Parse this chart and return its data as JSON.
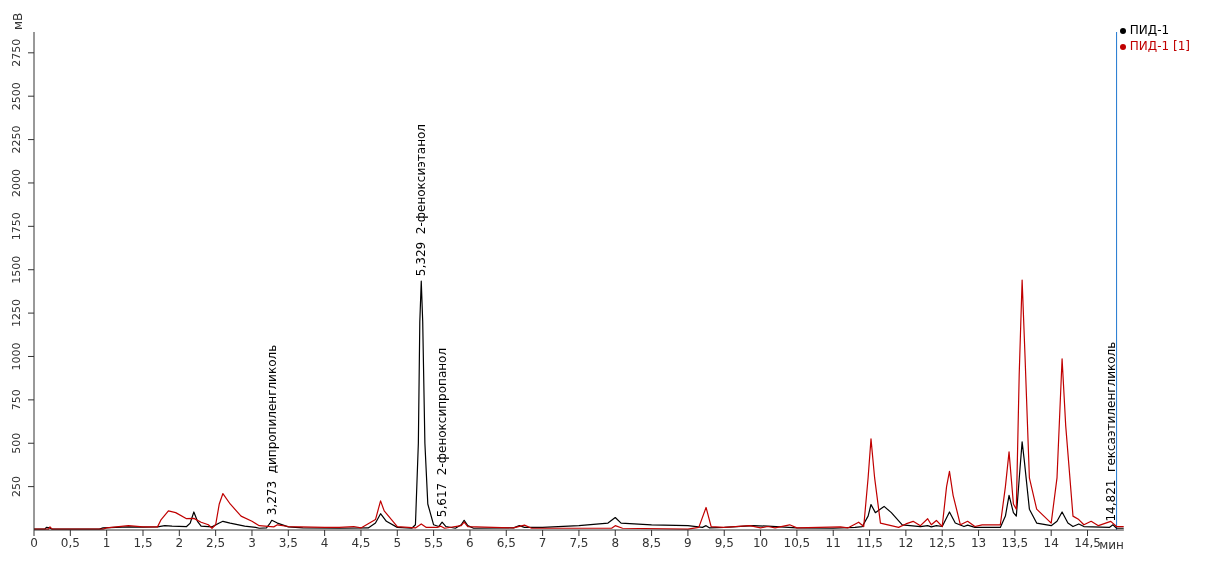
{
  "chart_data": {
    "type": "line",
    "xlabel": "мин",
    "ylabel": "мВ",
    "xlim": [
      0,
      15
    ],
    "ylim": [
      0,
      2870
    ],
    "xticks": [
      0,
      {
        "value": 0.5,
        "label": "0,5"
      },
      1,
      {
        "value": 1.5,
        "label": "1,5"
      },
      2,
      {
        "value": 2.5,
        "label": "2,5"
      },
      3,
      {
        "value": 3.5,
        "label": "3,5"
      },
      4,
      {
        "value": 4.5,
        "label": "4,5"
      },
      5,
      {
        "value": 5.5,
        "label": "5,5"
      },
      6,
      {
        "value": 6.5,
        "label": "6,5"
      },
      7,
      {
        "value": 7.5,
        "label": "7,5"
      },
      8,
      {
        "value": 8.5,
        "label": "8,5"
      },
      9,
      {
        "value": 9.5,
        "label": "9,5"
      },
      10,
      {
        "value": 10.5,
        "label": "10,5"
      },
      11,
      {
        "value": 11.5,
        "label": "11,5"
      },
      12,
      {
        "value": 12.5,
        "label": "12,5"
      },
      13,
      {
        "value": 13.5,
        "label": "13,5"
      },
      14,
      {
        "value": 14.5,
        "label": "14,5"
      }
    ],
    "yticks": [
      250,
      500,
      750,
      1000,
      1250,
      1500,
      1750,
      2000,
      2250,
      2500,
      2750
    ],
    "legend": "top right",
    "grid": false,
    "marker": "none",
    "series": [
      {
        "name": "ПИД-1",
        "color": "#000000",
        "x": [
          0,
          0.15,
          0.17,
          0.22,
          0.25,
          0.9,
          0.95,
          1.3,
          1.5,
          1.7,
          1.8,
          1.9,
          2.1,
          2.15,
          2.2,
          2.25,
          2.3,
          2.45,
          2.55,
          2.6,
          2.7,
          2.9,
          3.05,
          3.1,
          3.2,
          3.25,
          3.273,
          3.35,
          3.5,
          3.7,
          4.2,
          4.6,
          4.7,
          4.77,
          4.85,
          5.0,
          5.2,
          5.25,
          5.29,
          5.31,
          5.33,
          5.35,
          5.38,
          5.42,
          5.5,
          5.57,
          5.617,
          5.67,
          5.8,
          5.88,
          5.92,
          5.97,
          6.05,
          6.6,
          6.68,
          6.75,
          7.0,
          7.5,
          7.9,
          8.0,
          8.08,
          8.5,
          9.0,
          9.2,
          9.25,
          9.3,
          9.5,
          9.9,
          10.1,
          10.5,
          11.0,
          11.3,
          11.4,
          11.48,
          11.52,
          11.58,
          11.7,
          11.8,
          11.95,
          12.2,
          12.3,
          12.35,
          12.42,
          12.5,
          12.6,
          12.68,
          12.8,
          12.85,
          12.95,
          13.3,
          13.37,
          13.42,
          13.48,
          13.52,
          13.57,
          13.6,
          13.63,
          13.7,
          13.8,
          14.0,
          14.08,
          14.15,
          14.23,
          14.3,
          14.38,
          14.45,
          14.8,
          14.85,
          14.9,
          15
        ],
        "values": [
          5,
          5,
          15,
          12,
          5,
          5,
          12,
          18,
          16,
          18,
          25,
          22,
          20,
          40,
          104,
          50,
          22,
          18,
          40,
          50,
          40,
          22,
          15,
          10,
          12,
          40,
          56,
          40,
          18,
          12,
          10,
          12,
          40,
          94,
          50,
          15,
          10,
          30,
          500,
          1200,
          1434,
          1200,
          500,
          150,
          30,
          20,
          45,
          20,
          10,
          30,
          56,
          25,
          10,
          12,
          25,
          15,
          15,
          25,
          40,
          72,
          40,
          30,
          25,
          15,
          25,
          12,
          15,
          25,
          22,
          12,
          10,
          15,
          20,
          80,
          147,
          100,
          136,
          100,
          30,
          20,
          25,
          18,
          25,
          20,
          104,
          40,
          20,
          28,
          15,
          15,
          80,
          200,
          100,
          80,
          350,
          508,
          400,
          120,
          40,
          25,
          50,
          104,
          40,
          20,
          35,
          20,
          15,
          30,
          10,
          10
        ]
      },
      {
        "name": "ПИД-1 [1]",
        "color": "#c00000",
        "x": [
          0,
          0.2,
          0.22,
          0.25,
          0.95,
          1.0,
          1.3,
          1.5,
          1.7,
          1.75,
          1.85,
          1.95,
          2.1,
          2.2,
          2.3,
          2.4,
          2.45,
          2.5,
          2.55,
          2.6,
          2.7,
          2.85,
          3.0,
          3.1,
          3.3,
          3.35,
          3.5,
          4.0,
          4.2,
          4.4,
          4.5,
          4.7,
          4.77,
          4.82,
          5.0,
          5.25,
          5.33,
          5.4,
          5.55,
          5.6,
          5.65,
          5.88,
          5.92,
          5.97,
          6.6,
          6.75,
          6.85,
          7.5,
          7.95,
          8.0,
          8.1,
          9.0,
          9.15,
          9.25,
          9.32,
          9.5,
          9.85,
          10.0,
          10.1,
          10.2,
          10.4,
          10.5,
          11.1,
          11.2,
          11.35,
          11.42,
          11.48,
          11.52,
          11.57,
          11.65,
          11.9,
          12.0,
          12.1,
          12.2,
          12.3,
          12.35,
          12.42,
          12.5,
          12.56,
          12.6,
          12.65,
          12.75,
          12.85,
          12.95,
          13.05,
          13.3,
          13.37,
          13.42,
          13.48,
          13.52,
          13.56,
          13.6,
          13.64,
          13.7,
          13.8,
          14.0,
          14.08,
          14.15,
          14.2,
          14.3,
          14.38,
          14.45,
          14.55,
          14.65,
          14.82,
          14.9,
          15
        ],
        "values": [
          5,
          5,
          18,
          5,
          5,
          12,
          25,
          18,
          18,
          60,
          110,
          100,
          65,
          67,
          45,
          30,
          10,
          30,
          150,
          210,
          150,
          80,
          50,
          25,
          18,
          30,
          20,
          15,
          15,
          20,
          12,
          60,
          168,
          110,
          20,
          12,
          35,
          15,
          15,
          22,
          10,
          25,
          45,
          20,
          12,
          28,
          10,
          10,
          10,
          25,
          10,
          5,
          15,
          130,
          20,
          15,
          25,
          12,
          20,
          12,
          30,
          12,
          18,
          12,
          45,
          20,
          300,
          525,
          300,
          40,
          15,
          35,
          50,
          25,
          65,
          30,
          55,
          20,
          250,
          338,
          200,
          30,
          50,
          20,
          30,
          30,
          250,
          450,
          150,
          120,
          900,
          1440,
          1000,
          300,
          120,
          40,
          300,
          987,
          600,
          80,
          60,
          30,
          50,
          25,
          50,
          20,
          20
        ]
      }
    ],
    "ref_lines": [
      {
        "axis": "x",
        "value": 14.9,
        "color": "#1f77d0"
      }
    ],
    "annotations": [
      {
        "text": "3,273  дипропиленгликоль",
        "x": 3.273,
        "y": 56
      },
      {
        "text": "5,329  2-феноксиэтанол",
        "x": 5.329,
        "y": 1434
      },
      {
        "text": "5,617  2-феноксипропанол",
        "x": 5.617,
        "y": 45
      },
      {
        "text": "14,821  гексаэтиленгликоль",
        "x": 14.821,
        "y": 20
      }
    ]
  }
}
